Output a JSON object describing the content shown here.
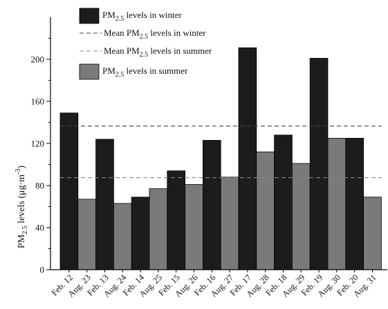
{
  "chart_data": {
    "type": "bar",
    "categories": [
      "Feb. 12",
      "Aug. 23",
      "Feb. 13",
      "Aug. 24",
      "Feb. 14",
      "Aug. 25",
      "Feb. 15",
      "Aug. 26",
      "Feb. 16",
      "Aug. 27",
      "Feb. 17",
      "Aug. 28",
      "Feb. 18",
      "Aug. 29",
      "Feb. 19",
      "Aug. 30",
      "Feb. 20",
      "Aug. 31"
    ],
    "values": [
      149,
      67,
      124,
      63,
      69,
      77,
      94,
      81,
      123,
      88,
      211,
      112,
      128,
      101,
      201,
      125,
      125,
      69
    ],
    "series_of_bar": [
      "winter",
      "summer",
      "winter",
      "summer",
      "winter",
      "summer",
      "winter",
      "summer",
      "winter",
      "summer",
      "winter",
      "summer",
      "winter",
      "summer",
      "winter",
      "summer",
      "winter",
      "summer"
    ],
    "ylim": [
      0,
      240
    ],
    "yticks": [
      0,
      40,
      80,
      120,
      160,
      200
    ],
    "ylabel": {
      "base": "PM",
      "sub": "2.5",
      "rest": " levels (μg·m",
      "sup": "-3",
      "end": ")"
    },
    "mean_lines": [
      {
        "series": "winter",
        "value": 136.5,
        "color": "#444444"
      },
      {
        "series": "summer",
        "value": 87.5,
        "color": "#888888"
      }
    ],
    "colors": {
      "winter": "#1c1c1c",
      "summer": "#7a7a7a"
    },
    "legend": [
      {
        "kind": "box",
        "series": "winter",
        "pre": "PM",
        "sub": "2.5",
        "post": " levels in winter"
      },
      {
        "kind": "line",
        "series": "winter",
        "pre": "Mean PM",
        "sub": "2.5",
        "post": " levels in winter"
      },
      {
        "kind": "line",
        "series": "summer",
        "pre": "Mean PM",
        "sub": "2.5",
        "post": " levels in summer"
      },
      {
        "kind": "box",
        "series": "summer",
        "pre": "PM",
        "sub": "2.5",
        "post": " levels in summer"
      }
    ],
    "legend_position": "top-left"
  }
}
